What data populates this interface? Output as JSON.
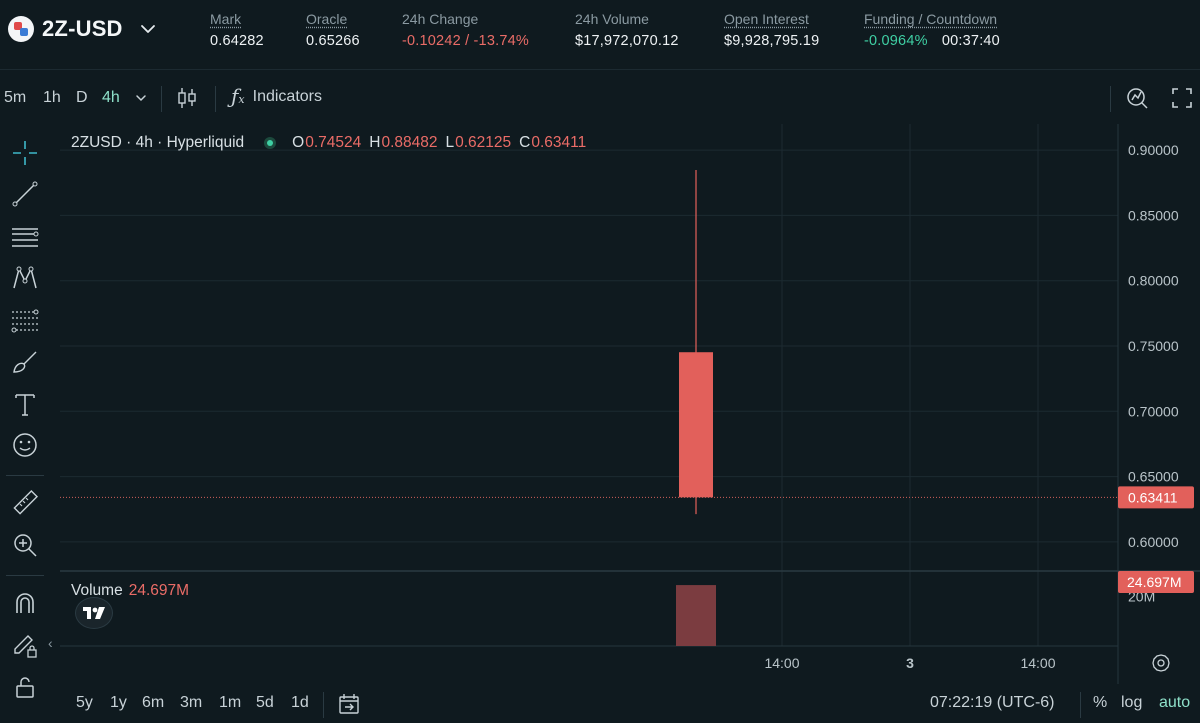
{
  "header": {
    "pair": "2Z-USD",
    "stats": [
      {
        "label": "Mark",
        "value": "0.64282",
        "underline": true,
        "color": "default"
      },
      {
        "label": "Oracle",
        "value": "0.65266",
        "underline": true,
        "color": "default"
      },
      {
        "label": "24h Change",
        "value": "-0.10242 / -13.74%",
        "underline": false,
        "color": "red"
      },
      {
        "label": "24h Volume",
        "value": "$17,972,070.12",
        "underline": false,
        "color": "default"
      },
      {
        "label": "Open Interest",
        "value": "$9,928,795.19",
        "underline": true,
        "color": "default"
      },
      {
        "label": "Funding / Countdown",
        "value": "-0.0964%",
        "value2": "00:37:40",
        "underline": true,
        "color": "green"
      }
    ]
  },
  "toolbar": {
    "timeframes": [
      "5m",
      "1h",
      "D",
      "4h"
    ],
    "active_timeframe": "4h",
    "indicators_label": "Indicators"
  },
  "legend": {
    "symbol": "2ZUSD · 4h · Hyperliquid",
    "o_label": "O",
    "o": "0.74524",
    "h_label": "H",
    "h": "0.88482",
    "l_label": "L",
    "l": "0.62125",
    "c_label": "C",
    "c": "0.63411"
  },
  "volume": {
    "label": "Volume",
    "value": "24.697M"
  },
  "price_axis": {
    "ticks": [
      "0.90000",
      "0.85000",
      "0.80000",
      "0.75000",
      "0.70000",
      "0.65000",
      "0.60000"
    ],
    "last_price": "0.63411",
    "volume_tick": "20M",
    "volume_last": "24.697M"
  },
  "time_axis": {
    "ticks": [
      "14:00",
      "3",
      "14:00"
    ]
  },
  "chart_data": {
    "type": "candlestick",
    "title": "2ZUSD · 4h · Hyperliquid",
    "ylim": [
      0.58,
      0.92
    ],
    "candles": [
      {
        "open": 0.74524,
        "high": 0.88482,
        "low": 0.62125,
        "close": 0.63411,
        "volume": 24697000
      }
    ],
    "last_price": 0.63411,
    "volume_ylim": [
      0,
      30000000
    ],
    "colors": {
      "down": "#e2605b",
      "volume_down": "#7b3c40",
      "up": "#3fd0a4"
    }
  },
  "bottombar": {
    "ranges": [
      "5y",
      "1y",
      "6m",
      "3m",
      "1m",
      "5d",
      "1d"
    ],
    "clock": "07:22:19 (UTC-6)",
    "options": [
      "%",
      "log",
      "auto"
    ],
    "active_option": "auto"
  },
  "colors": {
    "background": "#0f1a1f",
    "accent": "#8ee0c9",
    "red": "#ea6c67",
    "green": "#3fd0a4"
  }
}
